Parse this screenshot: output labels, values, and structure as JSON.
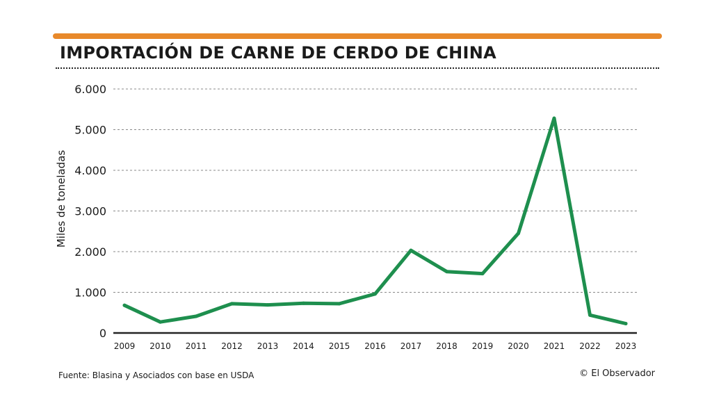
{
  "header": {
    "title": "IMPORTACIÓN DE CARNE DE CERDO DE CHINA"
  },
  "footer": {
    "source": "Fuente: Blasina y Asociados con base en USDA",
    "credit": "© El Observador"
  },
  "colors": {
    "accent": "#e8892b",
    "line": "#1e8f4e",
    "grid": "#888888",
    "text": "#1a1a1a"
  },
  "chart_data": {
    "type": "line",
    "title": "IMPORTACIÓN DE CARNE DE CERDO DE CHINA",
    "xlabel": "",
    "ylabel": "Miles de toneladas",
    "categories": [
      "2009",
      "2010",
      "2011",
      "2012",
      "2013",
      "2014",
      "2015",
      "2016",
      "2017",
      "2018",
      "2019",
      "2020",
      "2021",
      "2022",
      "2023"
    ],
    "series": [
      {
        "name": "Importación",
        "values": [
          680,
          270,
          410,
          720,
          690,
          730,
          720,
          960,
          2030,
          1510,
          1460,
          2450,
          5280,
          440,
          230
        ]
      }
    ],
    "ylim": [
      0,
      6000
    ],
    "yticks": [
      0,
      1000,
      2000,
      3000,
      4000,
      5000,
      6000
    ],
    "ytick_labels": [
      "0",
      "1.000",
      "2.000",
      "3.000",
      "4.000",
      "5.000",
      "6.000"
    ],
    "grid": true,
    "legend": "none"
  }
}
